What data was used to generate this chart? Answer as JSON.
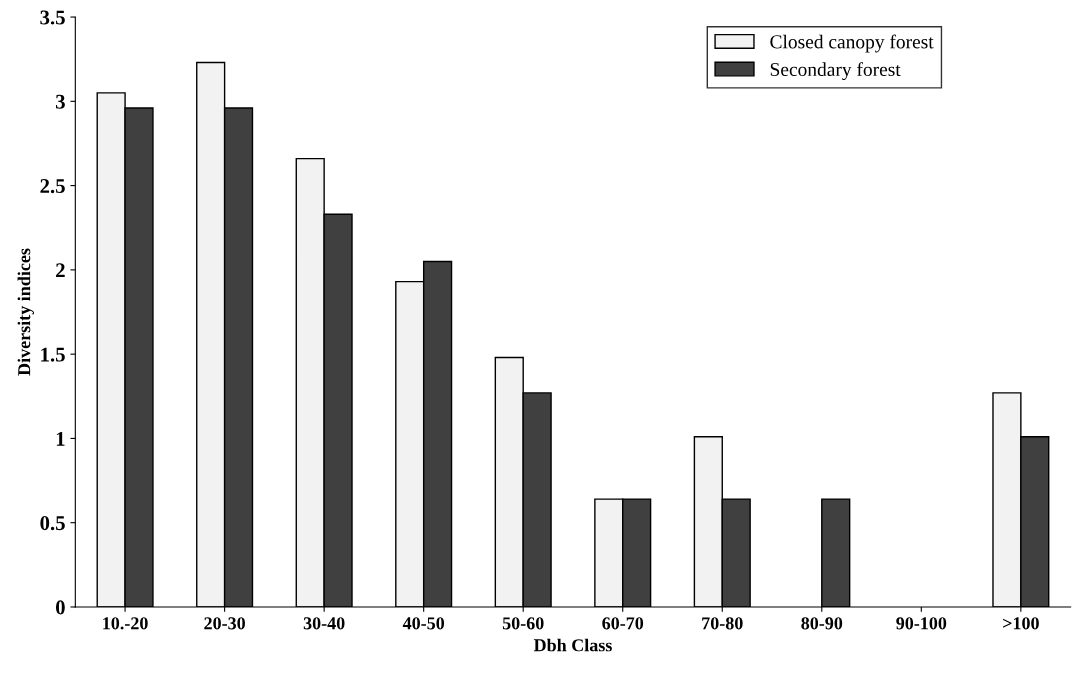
{
  "chart_data": {
    "type": "bar",
    "xlabel": "Dbh Class",
    "ylabel": "Diversity indices",
    "categories": [
      "10.-20",
      "20-30",
      "30-40",
      "40-50",
      "50-60",
      "60-70",
      "70-80",
      "80-90",
      "90-100",
      ">100"
    ],
    "series": [
      {
        "name": "Closed canopy forest",
        "color": "#f2f2f2",
        "values": [
          3.05,
          3.23,
          2.66,
          1.93,
          1.48,
          0.64,
          1.01,
          null,
          null,
          1.27
        ]
      },
      {
        "name": "Secondary forest",
        "color": "#404040",
        "values": [
          2.96,
          2.96,
          2.33,
          2.05,
          1.27,
          0.64,
          0.64,
          0.64,
          null,
          1.01
        ]
      }
    ],
    "ylim": [
      0,
      3.5
    ],
    "yticks": [
      0,
      0.5,
      1,
      1.5,
      2,
      2.5,
      3,
      3.5
    ],
    "grid": false,
    "legend": "top right"
  }
}
